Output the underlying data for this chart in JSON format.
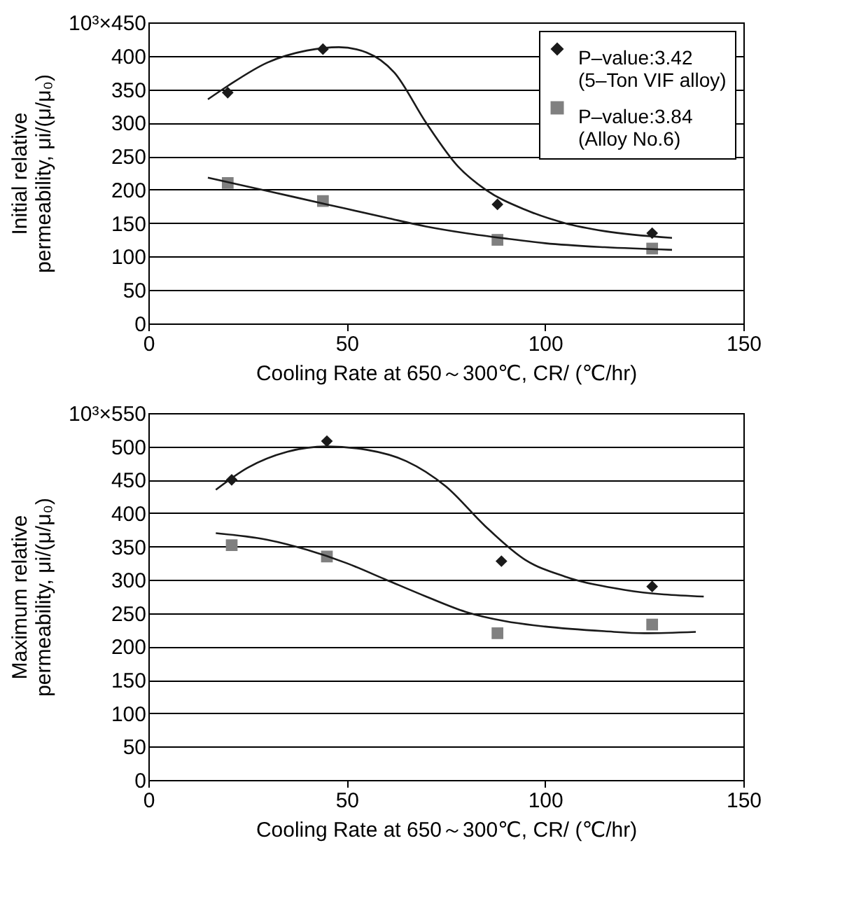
{
  "chart_data": [
    {
      "type": "scatter",
      "xlabel": "Cooling Rate at 650～300℃, CR/ (℃/hr)",
      "ylabel": "Initial relative\npermeability, μi/(μ/μ₀)",
      "xlim": [
        0,
        150
      ],
      "xticks": [
        0,
        50,
        100,
        150
      ],
      "ylim": [
        0,
        450
      ],
      "yticks": [
        0,
        50,
        100,
        150,
        200,
        250,
        300,
        350,
        400,
        {
          "value": 450,
          "label": "10³×450"
        }
      ],
      "grid": "y",
      "legend": "top right",
      "series": [
        {
          "type": "scatter",
          "name": "P–value:3.42\n(5–Ton VIF alloy)",
          "color": "#1a1a1a",
          "marker": "diamond",
          "x": [
            20,
            44,
            88,
            127
          ],
          "values": [
            345,
            410,
            178,
            135
          ]
        },
        {
          "type": "scatter",
          "name": "P–value:3.84\n(Alloy No.6)",
          "color": "#808080",
          "marker": "square",
          "x": [
            20,
            44,
            88,
            127
          ],
          "values": [
            210,
            183,
            125,
            112
          ]
        },
        {
          "type": "line",
          "color": "#1a1a1a",
          "marker": "none",
          "line_style": "solid",
          "x": [
            15,
            20,
            30,
            40,
            48,
            55,
            62,
            70,
            78,
            85,
            95,
            105,
            115,
            132
          ],
          "values": [
            335,
            355,
            390,
            408,
            413,
            405,
            375,
            300,
            235,
            200,
            170,
            150,
            138,
            128
          ]
        },
        {
          "type": "line",
          "color": "#1a1a1a",
          "marker": "none",
          "line_style": "solid",
          "x": [
            15,
            30,
            45,
            60,
            70,
            80,
            90,
            100,
            115,
            132
          ],
          "values": [
            218,
            198,
            178,
            158,
            145,
            135,
            127,
            120,
            114,
            110
          ]
        }
      ]
    },
    {
      "type": "scatter",
      "xlabel": "Cooling Rate at 650～300℃, CR/ (℃/hr)",
      "ylabel": "Maximum relative\npermeability, μi/(μ/μ₀)",
      "xlim": [
        0,
        150
      ],
      "xticks": [
        0,
        50,
        100,
        150
      ],
      "ylim": [
        0,
        550
      ],
      "yticks": [
        0,
        50,
        100,
        150,
        200,
        250,
        300,
        350,
        400,
        450,
        500,
        {
          "value": 550,
          "label": "10³×550"
        }
      ],
      "grid": "y",
      "series": [
        {
          "type": "scatter",
          "color": "#1a1a1a",
          "marker": "diamond",
          "x": [
            21,
            45,
            89,
            127
          ],
          "values": [
            450,
            508,
            328,
            290
          ]
        },
        {
          "type": "scatter",
          "color": "#808080",
          "marker": "square",
          "x": [
            21,
            45,
            88,
            127
          ],
          "values": [
            352,
            335,
            220,
            233
          ]
        },
        {
          "type": "line",
          "color": "#1a1a1a",
          "marker": "none",
          "line_style": "solid",
          "x": [
            17,
            25,
            35,
            45,
            55,
            65,
            75,
            85,
            95,
            105,
            120,
            140
          ],
          "values": [
            435,
            468,
            492,
            500,
            495,
            478,
            440,
            380,
            330,
            305,
            285,
            275
          ]
        },
        {
          "type": "line",
          "color": "#1a1a1a",
          "marker": "none",
          "line_style": "solid",
          "x": [
            17,
            30,
            40,
            50,
            60,
            70,
            80,
            90,
            100,
            115,
            125,
            138
          ],
          "values": [
            370,
            360,
            345,
            325,
            300,
            275,
            252,
            238,
            230,
            223,
            220,
            222
          ]
        }
      ]
    }
  ]
}
